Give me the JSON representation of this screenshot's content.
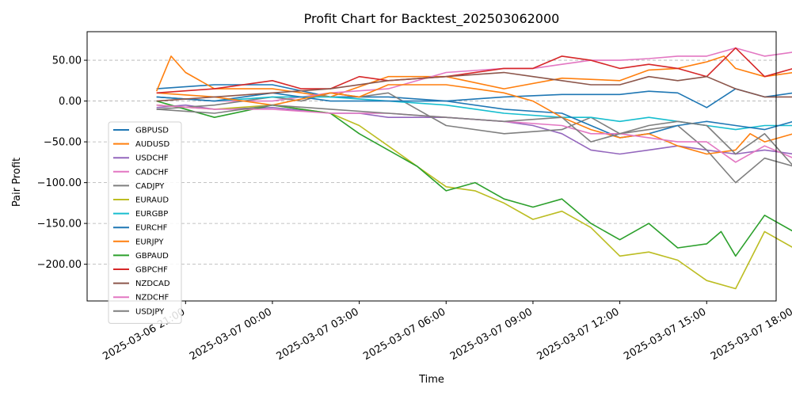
{
  "chart_data": {
    "type": "line",
    "title": "Profit Chart for Backtest_202503062000",
    "xlabel": "Time",
    "ylabel": "Pair Profit",
    "grid": "horizontal dashed",
    "legend_position": "center-left",
    "xlim_hours": [
      -2.4,
      21.4
    ],
    "ylim": [
      -245,
      85
    ],
    "x_ticks": [
      {
        "hour": 1,
        "label": "2025-03-06 21:00"
      },
      {
        "hour": 4,
        "label": "2025-03-07 00:00"
      },
      {
        "hour": 7,
        "label": "2025-03-07 03:00"
      },
      {
        "hour": 10,
        "label": "2025-03-07 06:00"
      },
      {
        "hour": 13,
        "label": "2025-03-07 09:00"
      },
      {
        "hour": 16,
        "label": "2025-03-07 12:00"
      },
      {
        "hour": 19,
        "label": "2025-03-07 15:00"
      },
      {
        "hour": 22,
        "label": "2025-03-07 18:00"
      }
    ],
    "y_ticks": [
      {
        "value": 50,
        "label": "50.00"
      },
      {
        "value": 0,
        "label": "0.00"
      },
      {
        "value": -50,
        "label": "−50.00"
      },
      {
        "value": -100,
        "label": "−100.00"
      },
      {
        "value": -150,
        "label": "−150.00"
      },
      {
        "value": -200,
        "label": "−200.00"
      }
    ],
    "series": [
      {
        "name": "GBPUSD",
        "color": "#1f77b4",
        "points": [
          [
            0,
            15
          ],
          [
            2,
            20
          ],
          [
            4,
            20
          ],
          [
            6,
            5
          ],
          [
            8,
            5
          ],
          [
            10,
            0
          ],
          [
            12,
            5
          ],
          [
            14,
            8
          ],
          [
            16,
            8
          ],
          [
            17,
            12
          ],
          [
            18,
            10
          ],
          [
            19,
            -8
          ],
          [
            20,
            15
          ],
          [
            21,
            5
          ],
          [
            22,
            10
          ],
          [
            23,
            25
          ],
          [
            24,
            18
          ]
        ]
      },
      {
        "name": "AUDUSD",
        "color": "#ff7f0e",
        "points": [
          [
            0,
            12
          ],
          [
            0.5,
            55
          ],
          [
            1,
            35
          ],
          [
            2,
            15
          ],
          [
            4,
            15
          ],
          [
            6,
            5
          ],
          [
            8,
            30
          ],
          [
            10,
            30
          ],
          [
            12,
            15
          ],
          [
            14,
            28
          ],
          [
            16,
            25
          ],
          [
            17,
            38
          ],
          [
            18,
            40
          ],
          [
            19,
            48
          ],
          [
            19.6,
            55
          ],
          [
            20,
            40
          ],
          [
            21,
            30
          ],
          [
            22,
            35
          ],
          [
            23,
            45
          ],
          [
            24,
            45
          ]
        ]
      },
      {
        "name": "USDCHF",
        "color": "#9467bd",
        "points": [
          [
            0,
            -8
          ],
          [
            1,
            -5
          ],
          [
            2,
            -10
          ],
          [
            4,
            -8
          ],
          [
            6,
            -15
          ],
          [
            7,
            -15
          ],
          [
            8,
            -20
          ],
          [
            10,
            -20
          ],
          [
            12,
            -25
          ],
          [
            13,
            -30
          ],
          [
            14,
            -40
          ],
          [
            15,
            -60
          ],
          [
            16,
            -65
          ],
          [
            17,
            -60
          ],
          [
            18,
            -55
          ],
          [
            19,
            -60
          ],
          [
            20,
            -65
          ],
          [
            21,
            -60
          ],
          [
            22,
            -65
          ],
          [
            23,
            -70
          ],
          [
            24,
            -55
          ]
        ]
      },
      {
        "name": "CADCHF",
        "color": "#e377c2",
        "points": [
          [
            0,
            5
          ],
          [
            2,
            0
          ],
          [
            4,
            0
          ],
          [
            6,
            10
          ],
          [
            8,
            15
          ],
          [
            10,
            35
          ],
          [
            12,
            40
          ],
          [
            13,
            40
          ],
          [
            14,
            45
          ],
          [
            15,
            50
          ],
          [
            16,
            50
          ],
          [
            17,
            52
          ],
          [
            18,
            55
          ],
          [
            19,
            55
          ],
          [
            20,
            65
          ],
          [
            21,
            55
          ],
          [
            22,
            60
          ],
          [
            23,
            75
          ],
          [
            24,
            70
          ]
        ]
      },
      {
        "name": "CADJPY",
        "color": "#7f7f7f",
        "points": [
          [
            0,
            -10
          ],
          [
            2,
            -5
          ],
          [
            4,
            5
          ],
          [
            5,
            0
          ],
          [
            6,
            10
          ],
          [
            7,
            5
          ],
          [
            8,
            10
          ],
          [
            9,
            -10
          ],
          [
            10,
            -30
          ],
          [
            12,
            -40
          ],
          [
            14,
            -35
          ],
          [
            15,
            -20
          ],
          [
            16,
            -40
          ],
          [
            17,
            -35
          ],
          [
            18,
            -30
          ],
          [
            19,
            -60
          ],
          [
            20,
            -100
          ],
          [
            21,
            -70
          ],
          [
            22,
            -80
          ],
          [
            23,
            -100
          ],
          [
            24,
            -93
          ]
        ]
      },
      {
        "name": "EURAUD",
        "color": "#bcbd22",
        "points": [
          [
            0,
            -5
          ],
          [
            2,
            -10
          ],
          [
            4,
            -5
          ],
          [
            6,
            -15
          ],
          [
            7,
            -30
          ],
          [
            8,
            -55
          ],
          [
            9,
            -80
          ],
          [
            10,
            -105
          ],
          [
            11,
            -110
          ],
          [
            12,
            -125
          ],
          [
            13,
            -145
          ],
          [
            14,
            -135
          ],
          [
            15,
            -155
          ],
          [
            16,
            -190
          ],
          [
            17,
            -185
          ],
          [
            18,
            -195
          ],
          [
            19,
            -220
          ],
          [
            20,
            -230
          ],
          [
            21,
            -160
          ],
          [
            22,
            -180
          ],
          [
            23,
            -205
          ],
          [
            24,
            -195
          ]
        ]
      },
      {
        "name": "EURGBP",
        "color": "#17becf",
        "points": [
          [
            0,
            5
          ],
          [
            2,
            0
          ],
          [
            4,
            5
          ],
          [
            6,
            5
          ],
          [
            8,
            0
          ],
          [
            10,
            -5
          ],
          [
            12,
            -15
          ],
          [
            14,
            -20
          ],
          [
            15,
            -20
          ],
          [
            16,
            -25
          ],
          [
            17,
            -20
          ],
          [
            18,
            -25
          ],
          [
            19,
            -30
          ],
          [
            20,
            -35
          ],
          [
            21,
            -30
          ],
          [
            22,
            -30
          ],
          [
            23,
            -30
          ],
          [
            24,
            -22
          ]
        ]
      },
      {
        "name": "EURCHF",
        "color": "#1f77b4",
        "points": [
          [
            0,
            5
          ],
          [
            2,
            0
          ],
          [
            4,
            10
          ],
          [
            6,
            0
          ],
          [
            8,
            0
          ],
          [
            10,
            0
          ],
          [
            12,
            -10
          ],
          [
            14,
            -15
          ],
          [
            15,
            -30
          ],
          [
            16,
            -45
          ],
          [
            17,
            -40
          ],
          [
            18,
            -30
          ],
          [
            19,
            -25
          ],
          [
            20,
            -30
          ],
          [
            21,
            -35
          ],
          [
            22,
            -25
          ],
          [
            23,
            -20
          ],
          [
            24,
            -18
          ]
        ]
      },
      {
        "name": "EURJPY",
        "color": "#ff7f0e",
        "points": [
          [
            0,
            10
          ],
          [
            2,
            5
          ],
          [
            4,
            -5
          ],
          [
            6,
            10
          ],
          [
            7,
            5
          ],
          [
            8,
            20
          ],
          [
            10,
            20
          ],
          [
            11,
            15
          ],
          [
            12,
            10
          ],
          [
            13,
            0
          ],
          [
            14,
            -20
          ],
          [
            15,
            -35
          ],
          [
            16,
            -45
          ],
          [
            17,
            -40
          ],
          [
            18,
            -55
          ],
          [
            19,
            -65
          ],
          [
            20,
            -60
          ],
          [
            20.5,
            -40
          ],
          [
            21,
            -50
          ],
          [
            22,
            -40
          ],
          [
            23,
            -20
          ],
          [
            24,
            -20
          ]
        ]
      },
      {
        "name": "GBPAUD",
        "color": "#2ca02c",
        "points": [
          [
            0,
            0
          ],
          [
            2,
            -20
          ],
          [
            4,
            -5
          ],
          [
            5,
            -10
          ],
          [
            6,
            -15
          ],
          [
            7,
            -40
          ],
          [
            8,
            -60
          ],
          [
            9,
            -80
          ],
          [
            10,
            -110
          ],
          [
            11,
            -100
          ],
          [
            12,
            -120
          ],
          [
            13,
            -130
          ],
          [
            14,
            -120
          ],
          [
            15,
            -150
          ],
          [
            16,
            -170
          ],
          [
            17,
            -150
          ],
          [
            18,
            -180
          ],
          [
            19,
            -175
          ],
          [
            19.5,
            -160
          ],
          [
            20,
            -190
          ],
          [
            21,
            -140
          ],
          [
            22,
            -160
          ],
          [
            23,
            -185
          ],
          [
            23.5,
            -165
          ],
          [
            24,
            -180
          ]
        ]
      },
      {
        "name": "GBPCHF",
        "color": "#d62728",
        "points": [
          [
            0,
            10
          ],
          [
            2,
            15
          ],
          [
            4,
            25
          ],
          [
            5,
            15
          ],
          [
            6,
            15
          ],
          [
            7,
            30
          ],
          [
            8,
            25
          ],
          [
            10,
            30
          ],
          [
            12,
            40
          ],
          [
            13,
            40
          ],
          [
            14,
            55
          ],
          [
            15,
            50
          ],
          [
            16,
            40
          ],
          [
            17,
            45
          ],
          [
            18,
            40
          ],
          [
            19,
            30
          ],
          [
            20,
            65
          ],
          [
            21,
            30
          ],
          [
            22,
            40
          ],
          [
            23,
            70
          ],
          [
            24,
            52
          ]
        ]
      },
      {
        "name": "NZDCAD",
        "color": "#8c564b",
        "points": [
          [
            0,
            0
          ],
          [
            2,
            5
          ],
          [
            4,
            10
          ],
          [
            6,
            15
          ],
          [
            8,
            25
          ],
          [
            10,
            30
          ],
          [
            12,
            35
          ],
          [
            13,
            30
          ],
          [
            14,
            25
          ],
          [
            15,
            20
          ],
          [
            16,
            20
          ],
          [
            17,
            30
          ],
          [
            18,
            25
          ],
          [
            19,
            30
          ],
          [
            20,
            15
          ],
          [
            21,
            5
          ],
          [
            22,
            5
          ],
          [
            23,
            -5
          ],
          [
            24,
            12
          ]
        ]
      },
      {
        "name": "NZDCHF",
        "color": "#e377c2",
        "points": [
          [
            0,
            -5
          ],
          [
            2,
            -10
          ],
          [
            4,
            -10
          ],
          [
            6,
            -15
          ],
          [
            8,
            -15
          ],
          [
            10,
            -20
          ],
          [
            12,
            -25
          ],
          [
            14,
            -30
          ],
          [
            15,
            -40
          ],
          [
            16,
            -40
          ],
          [
            17,
            -45
          ],
          [
            18,
            -50
          ],
          [
            19,
            -50
          ],
          [
            20,
            -75
          ],
          [
            21,
            -55
          ],
          [
            22,
            -70
          ],
          [
            23,
            -95
          ],
          [
            24,
            -75
          ]
        ]
      },
      {
        "name": "USDJPY",
        "color": "#7f7f7f",
        "points": [
          [
            0,
            -10
          ],
          [
            2,
            -15
          ],
          [
            4,
            -5
          ],
          [
            6,
            -10
          ],
          [
            8,
            -15
          ],
          [
            10,
            -20
          ],
          [
            12,
            -25
          ],
          [
            14,
            -20
          ],
          [
            15,
            -50
          ],
          [
            16,
            -40
          ],
          [
            17,
            -30
          ],
          [
            18,
            -25
          ],
          [
            19,
            -30
          ],
          [
            20,
            -65
          ],
          [
            21,
            -40
          ],
          [
            22,
            -80
          ],
          [
            23,
            -125
          ],
          [
            24,
            -45
          ]
        ]
      }
    ]
  }
}
